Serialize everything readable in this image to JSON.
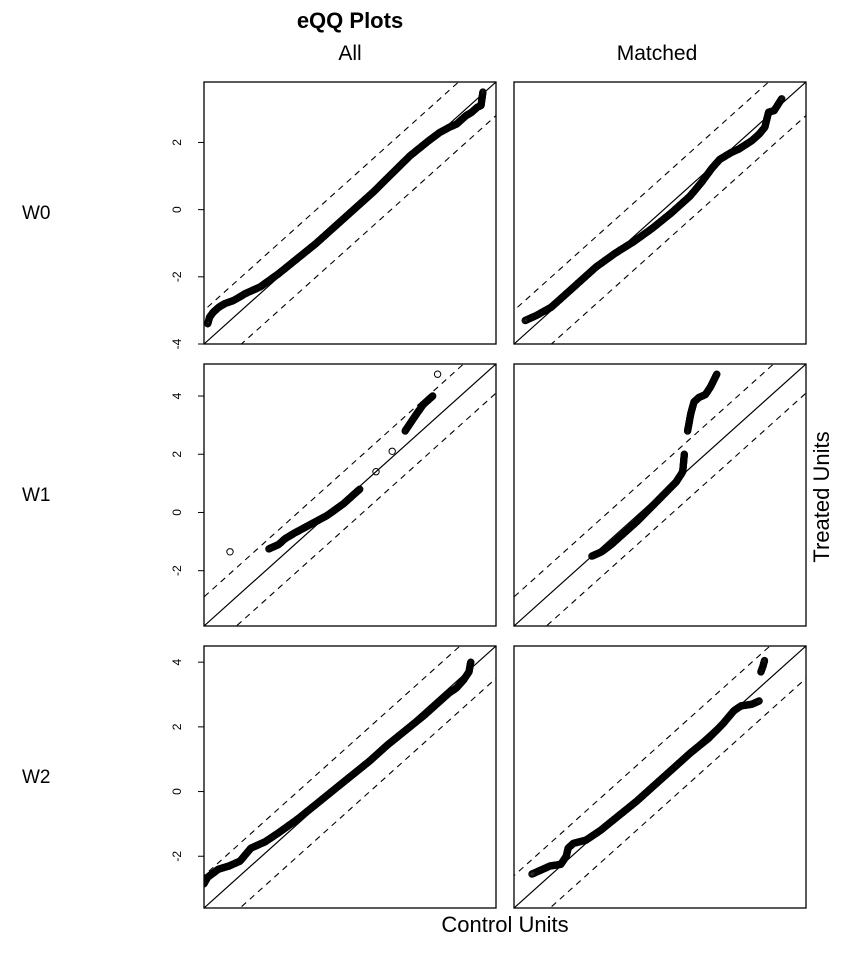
{
  "chart_data": {
    "type": "scatter",
    "title": "eQQ Plots",
    "column_titles": [
      "All",
      "Matched"
    ],
    "row_labels": [
      "W0",
      "W1",
      "W2"
    ],
    "xlabel": "Control Units",
    "ylabel": "Treated Units",
    "reference_lines": {
      "identity": "solid",
      "offset": 1.0,
      "offset_style": "dashed"
    },
    "rows": [
      {
        "label": "W0",
        "lim": [
          -4.0,
          3.8
        ],
        "ticks": [
          -4,
          -2,
          0,
          2
        ],
        "panels": [
          {
            "column": "All",
            "points": [
              [
                -3.9,
                -3.4
              ],
              [
                -3.85,
                -3.2
              ],
              [
                -3.75,
                -3.05
              ],
              [
                -3.6,
                -2.9
              ],
              [
                -3.45,
                -2.8
              ],
              [
                -3.2,
                -2.7
              ],
              [
                -2.9,
                -2.5
              ],
              [
                -2.5,
                -2.3
              ],
              [
                -2.0,
                -1.9
              ],
              [
                -1.5,
                -1.45
              ],
              [
                -1.0,
                -1.0
              ],
              [
                -0.5,
                -0.5
              ],
              [
                0.0,
                0.0
              ],
              [
                0.5,
                0.5
              ],
              [
                1.0,
                1.05
              ],
              [
                1.5,
                1.6
              ],
              [
                2.0,
                2.05
              ],
              [
                2.3,
                2.3
              ],
              [
                2.55,
                2.45
              ],
              [
                2.75,
                2.55
              ],
              [
                2.9,
                2.7
              ],
              [
                3.0,
                2.8
              ],
              [
                3.15,
                2.9
              ],
              [
                3.3,
                3.05
              ],
              [
                3.4,
                3.1
              ],
              [
                3.45,
                3.5
              ]
            ]
          },
          {
            "column": "Matched",
            "points": [
              [
                -3.7,
                -3.3
              ],
              [
                -3.4,
                -3.15
              ],
              [
                -3.0,
                -2.9
              ],
              [
                -2.85,
                -2.75
              ],
              [
                -2.6,
                -2.5
              ],
              [
                -2.3,
                -2.2
              ],
              [
                -1.8,
                -1.7
              ],
              [
                -1.3,
                -1.3
              ],
              [
                -0.8,
                -0.95
              ],
              [
                -0.3,
                -0.55
              ],
              [
                0.2,
                -0.1
              ],
              [
                0.7,
                0.4
              ],
              [
                1.0,
                0.8
              ],
              [
                1.3,
                1.25
              ],
              [
                1.5,
                1.5
              ],
              [
                1.8,
                1.7
              ],
              [
                2.0,
                1.8
              ],
              [
                2.35,
                2.05
              ],
              [
                2.55,
                2.25
              ],
              [
                2.7,
                2.45
              ],
              [
                2.8,
                2.9
              ],
              [
                2.95,
                2.95
              ],
              [
                3.15,
                3.3
              ]
            ]
          }
        ]
      },
      {
        "label": "W1",
        "lim": [
          -3.9,
          5.1
        ],
        "ticks": [
          -2,
          0,
          2,
          4
        ],
        "panels": [
          {
            "column": "All",
            "points": [
              [
                -3.1,
                -1.35
              ],
              [
                -1.9,
                -1.25
              ],
              [
                -1.6,
                -1.1
              ],
              [
                -1.4,
                -0.9
              ],
              [
                -1.1,
                -0.7
              ],
              [
                -0.6,
                -0.4
              ],
              [
                -0.1,
                -0.1
              ],
              [
                0.4,
                0.3
              ],
              [
                0.9,
                0.8
              ],
              [
                1.4,
                1.4
              ],
              [
                1.9,
                2.1
              ],
              [
                2.3,
                2.8
              ],
              [
                2.6,
                3.3
              ],
              [
                2.85,
                3.7
              ],
              [
                3.05,
                3.9
              ],
              [
                3.15,
                4.0
              ],
              [
                3.3,
                4.75
              ]
            ]
          },
          {
            "column": "Matched",
            "points": [
              [
                -1.5,
                -1.5
              ],
              [
                -1.2,
                -1.35
              ],
              [
                -0.9,
                -1.1
              ],
              [
                -0.5,
                -0.7
              ],
              [
                -0.1,
                -0.3
              ],
              [
                0.3,
                0.15
              ],
              [
                0.7,
                0.6
              ],
              [
                1.1,
                1.05
              ],
              [
                1.3,
                1.4
              ],
              [
                1.35,
                2.0
              ],
              [
                1.45,
                2.8
              ],
              [
                1.55,
                3.4
              ],
              [
                1.65,
                3.8
              ],
              [
                1.8,
                3.95
              ],
              [
                2.0,
                4.05
              ],
              [
                2.15,
                4.3
              ],
              [
                2.35,
                4.75
              ]
            ]
          }
        ]
      },
      {
        "label": "W2",
        "lim": [
          -3.6,
          4.5
        ],
        "ticks": [
          -2,
          0,
          2,
          4
        ],
        "panels": [
          {
            "column": "All",
            "points": [
              [
                -3.6,
                -2.85
              ],
              [
                -3.5,
                -2.65
              ],
              [
                -3.2,
                -2.4
              ],
              [
                -2.9,
                -2.3
              ],
              [
                -2.6,
                -2.15
              ],
              [
                -2.3,
                -1.75
              ],
              [
                -1.9,
                -1.55
              ],
              [
                -1.5,
                -1.25
              ],
              [
                -1.0,
                -0.85
              ],
              [
                -0.5,
                -0.4
              ],
              [
                0.0,
                0.05
              ],
              [
                0.5,
                0.5
              ],
              [
                1.0,
                0.95
              ],
              [
                1.5,
                1.45
              ],
              [
                2.0,
                1.9
              ],
              [
                2.5,
                2.35
              ],
              [
                2.9,
                2.75
              ],
              [
                3.2,
                3.05
              ],
              [
                3.4,
                3.2
              ],
              [
                3.6,
                3.45
              ],
              [
                3.75,
                3.7
              ],
              [
                3.8,
                4.0
              ]
            ]
          },
          {
            "column": "Matched",
            "points": [
              [
                -3.1,
                -2.55
              ],
              [
                -2.6,
                -2.3
              ],
              [
                -2.3,
                -2.25
              ],
              [
                -2.15,
                -2.0
              ],
              [
                -2.1,
                -1.75
              ],
              [
                -1.95,
                -1.6
              ],
              [
                -1.6,
                -1.5
              ],
              [
                -1.2,
                -1.2
              ],
              [
                -0.7,
                -0.75
              ],
              [
                -0.2,
                -0.3
              ],
              [
                0.3,
                0.2
              ],
              [
                0.8,
                0.7
              ],
              [
                1.3,
                1.2
              ],
              [
                1.8,
                1.65
              ],
              [
                2.2,
                2.1
              ],
              [
                2.5,
                2.5
              ],
              [
                2.7,
                2.65
              ],
              [
                3.0,
                2.7
              ],
              [
                3.2,
                2.8
              ],
              [
                3.25,
                3.7
              ],
              [
                3.3,
                3.85
              ],
              [
                3.35,
                4.05
              ]
            ]
          }
        ]
      }
    ]
  }
}
